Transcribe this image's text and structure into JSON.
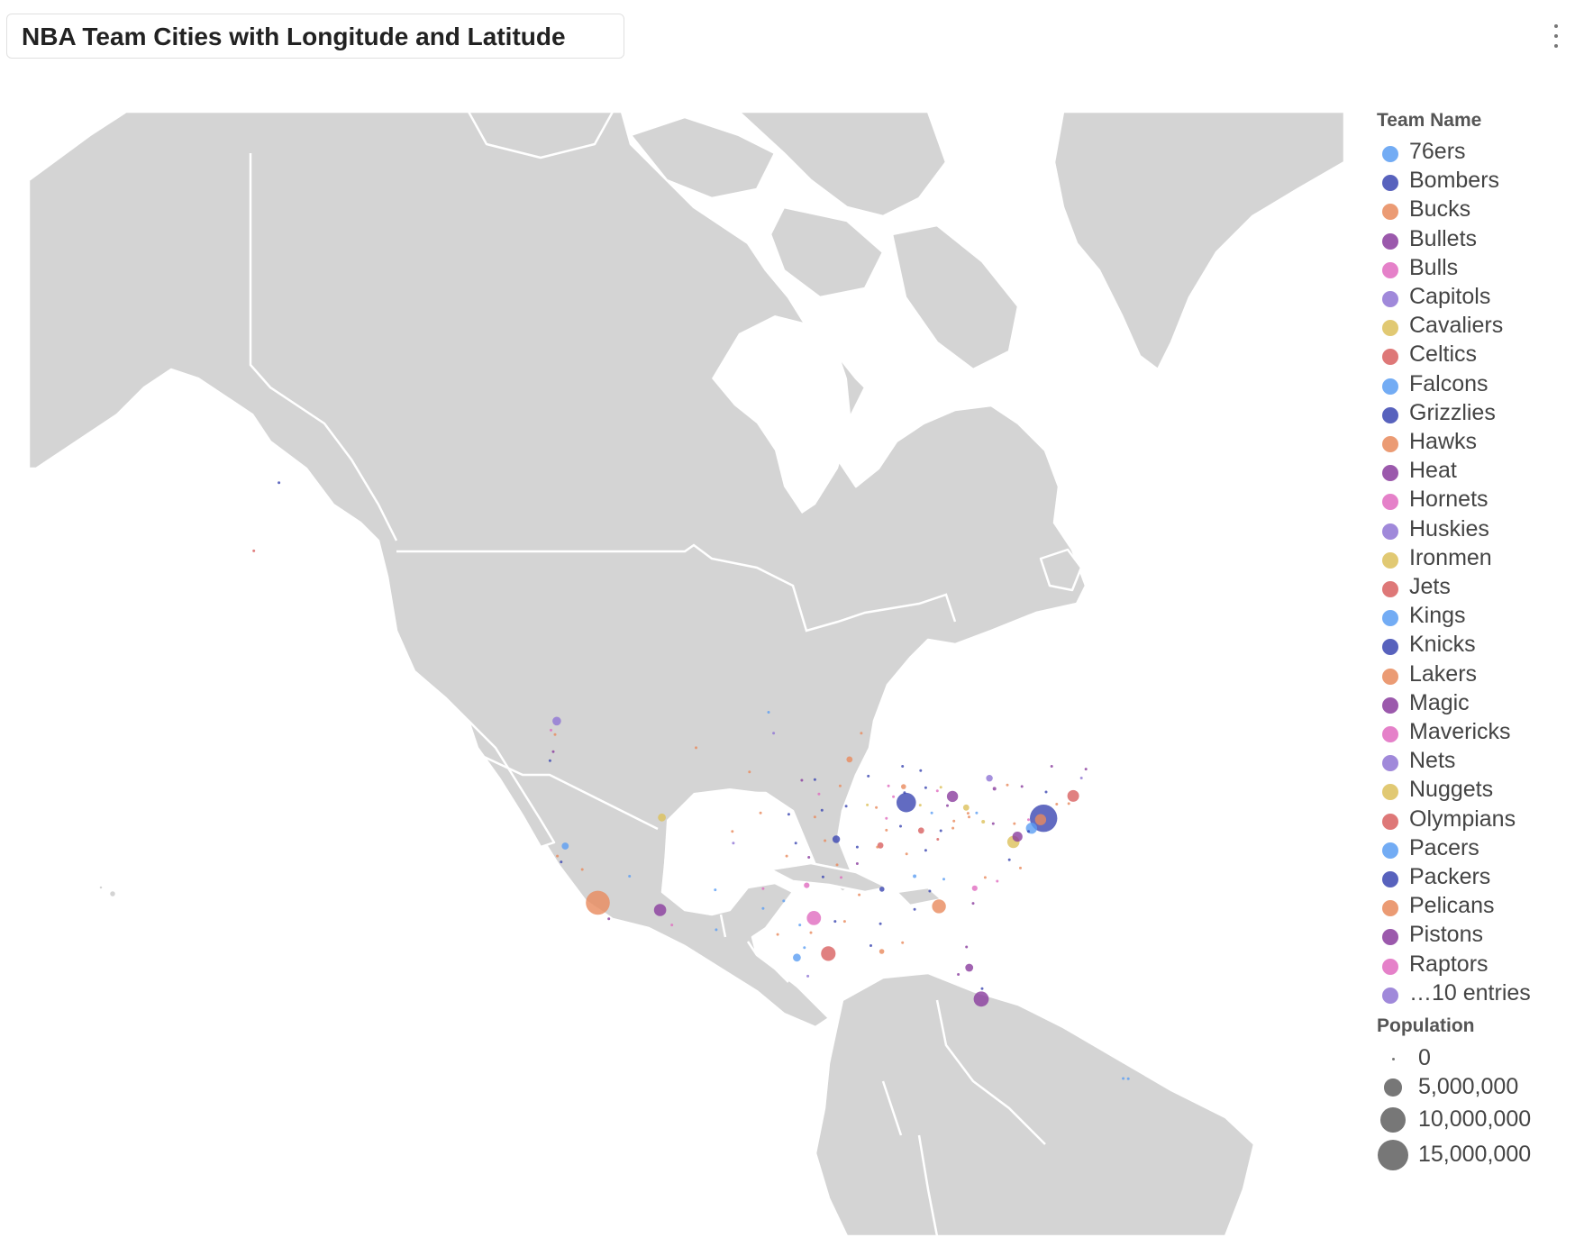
{
  "header": {
    "title": "NBA Team Cities with Longitude and Latitude",
    "menu_icon": "more-vertical-icon"
  },
  "colors": {
    "land": "#d4d4d4",
    "border": "#ffffff",
    "size_legend_dot": "#777777"
  },
  "legend": {
    "color_title": "Team Name",
    "teams": [
      {
        "label": "76ers",
        "color": "#5b9ef2"
      },
      {
        "label": "Bombers",
        "color": "#3b46b2"
      },
      {
        "label": "Bucks",
        "color": "#e88a5c"
      },
      {
        "label": "Bullets",
        "color": "#8a3c9e"
      },
      {
        "label": "Bulls",
        "color": "#e06bbf"
      },
      {
        "label": "Capitols",
        "color": "#8f74d4"
      },
      {
        "label": "Cavaliers",
        "color": "#dcc05a"
      },
      {
        "label": "Celtics",
        "color": "#d86060"
      },
      {
        "label": "Falcons",
        "color": "#5b9ef2"
      },
      {
        "label": "Grizzlies",
        "color": "#3b46b2"
      },
      {
        "label": "Hawks",
        "color": "#e88a5c"
      },
      {
        "label": "Heat",
        "color": "#8a3c9e"
      },
      {
        "label": "Hornets",
        "color": "#e06bbf"
      },
      {
        "label": "Huskies",
        "color": "#8f74d4"
      },
      {
        "label": "Ironmen",
        "color": "#dcc05a"
      },
      {
        "label": "Jets",
        "color": "#d86060"
      },
      {
        "label": "Kings",
        "color": "#5b9ef2"
      },
      {
        "label": "Knicks",
        "color": "#3b46b2"
      },
      {
        "label": "Lakers",
        "color": "#e88a5c"
      },
      {
        "label": "Magic",
        "color": "#8a3c9e"
      },
      {
        "label": "Mavericks",
        "color": "#e06bbf"
      },
      {
        "label": "Nets",
        "color": "#8f74d4"
      },
      {
        "label": "Nuggets",
        "color": "#dcc05a"
      },
      {
        "label": "Olympians",
        "color": "#d86060"
      },
      {
        "label": "Pacers",
        "color": "#5b9ef2"
      },
      {
        "label": "Packers",
        "color": "#3b46b2"
      },
      {
        "label": "Pelicans",
        "color": "#e88a5c"
      },
      {
        "label": "Pistons",
        "color": "#8a3c9e"
      },
      {
        "label": "Raptors",
        "color": "#e06bbf"
      },
      {
        "label": "…10 entries",
        "color": "#8f74d4"
      }
    ],
    "size_title": "Population",
    "sizes": [
      {
        "label": "0",
        "value": 0
      },
      {
        "label": "5,000,000",
        "value": 5000000
      },
      {
        "label": "10,000,000",
        "value": 10000000
      },
      {
        "label": "15,000,000",
        "value": 15000000
      }
    ]
  },
  "chart_data": {
    "type": "scatter",
    "projection": "mercator",
    "x_field": "longitude",
    "y_field": "latitude",
    "color_field": "Team Name",
    "size_field": "Population",
    "points": [
      {
        "lon": -74.0,
        "lat": 40.7,
        "pop": 12000000,
        "c": 1
      },
      {
        "lon": -74.3,
        "lat": 40.6,
        "pop": 2000000,
        "c": 2
      },
      {
        "lon": -75.2,
        "lat": 39.95,
        "pop": 2000000,
        "c": 0
      },
      {
        "lon": -76.6,
        "lat": 39.3,
        "pop": 1600000,
        "c": 3
      },
      {
        "lon": -77.0,
        "lat": 38.9,
        "pop": 2400000,
        "c": 6
      },
      {
        "lon": -71.06,
        "lat": 42.36,
        "pop": 2200000,
        "c": 7
      },
      {
        "lon": -118.25,
        "lat": 34.05,
        "pop": 9200000,
        "c": 2
      },
      {
        "lon": -87.63,
        "lat": 41.88,
        "pop": 6000000,
        "c": 1
      },
      {
        "lon": -83.05,
        "lat": 42.33,
        "pop": 2000000,
        "c": 3
      },
      {
        "lon": -95.37,
        "lat": 29.76,
        "pop": 3400000,
        "c": 7
      },
      {
        "lon": -96.8,
        "lat": 32.78,
        "pop": 3200000,
        "c": 4
      },
      {
        "lon": -84.39,
        "lat": 33.75,
        "pop": 3100000,
        "c": 2
      },
      {
        "lon": -80.19,
        "lat": 25.77,
        "pop": 3700000,
        "c": 3
      },
      {
        "lon": -112.07,
        "lat": 33.45,
        "pop": 2400000,
        "c": 3
      },
      {
        "lon": -122.33,
        "lat": 47.61,
        "pop": 1200000,
        "c": 5
      },
      {
        "lon": -121.49,
        "lat": 38.58,
        "pop": 800000,
        "c": 0
      },
      {
        "lon": -111.89,
        "lat": 40.76,
        "pop": 1000000,
        "c": 6
      },
      {
        "lon": -98.49,
        "lat": 29.42,
        "pop": 1000000,
        "c": 0
      },
      {
        "lon": -90.07,
        "lat": 29.95,
        "pop": 400000,
        "c": 2
      },
      {
        "lon": -81.38,
        "lat": 28.54,
        "pop": 1000000,
        "c": 3
      },
      {
        "lon": -93.27,
        "lat": 44.98,
        "pop": 600000,
        "c": 2
      },
      {
        "lon": -86.16,
        "lat": 39.77,
        "pop": 600000,
        "c": 7
      },
      {
        "lon": -90.05,
        "lat": 35.15,
        "pop": 400000,
        "c": 1
      },
      {
        "lon": -97.52,
        "lat": 35.47,
        "pop": 500000,
        "c": 4
      },
      {
        "lon": -80.84,
        "lat": 35.23,
        "pop": 500000,
        "c": 4
      },
      {
        "lon": -81.69,
        "lat": 41.5,
        "pop": 600000,
        "c": 6
      },
      {
        "lon": -79.38,
        "lat": 43.65,
        "pop": 700000,
        "c": 5
      },
      {
        "lon": -94.58,
        "lat": 39.1,
        "pop": 900000,
        "c": 1
      },
      {
        "lon": -78.88,
        "lat": 42.89,
        "pop": 200000,
        "c": 3
      },
      {
        "lon": -121.89,
        "lat": 37.34,
        "pop": 100000,
        "c": 1
      },
      {
        "lon": -122.68,
        "lat": 45.52,
        "pop": 100000,
        "c": 3
      },
      {
        "lon": -149.9,
        "lat": 61.22,
        "pop": 100000,
        "c": 1
      },
      {
        "lon": -152.4,
        "lat": 57.79,
        "pop": 100000,
        "c": 7
      },
      {
        "lon": -66.1,
        "lat": 18.47,
        "pop": 100000,
        "c": 0
      },
      {
        "lon": -65.6,
        "lat": 18.45,
        "pop": 100000,
        "c": 0
      },
      {
        "lon": -117.16,
        "lat": 32.72,
        "pop": 100000,
        "c": 3
      },
      {
        "lon": -119.8,
        "lat": 36.74,
        "pop": 100000,
        "c": 2
      },
      {
        "lon": -122.27,
        "lat": 37.8,
        "pop": 100000,
        "c": 2
      },
      {
        "lon": -123.0,
        "lat": 44.9,
        "pop": 100000,
        "c": 1
      },
      {
        "lon": -122.9,
        "lat": 47.0,
        "pop": 100000,
        "c": 4
      },
      {
        "lon": -122.5,
        "lat": 46.7,
        "pop": 100000,
        "c": 2
      },
      {
        "lon": -115.1,
        "lat": 36.2,
        "pop": 100000,
        "c": 0
      },
      {
        "lon": -106.6,
        "lat": 35.1,
        "pop": 100000,
        "c": 0
      },
      {
        "lon": -106.5,
        "lat": 31.8,
        "pop": 100000,
        "c": 0
      },
      {
        "lon": -104.9,
        "lat": 39.7,
        "pop": 100000,
        "c": 2
      },
      {
        "lon": -110.9,
        "lat": 32.2,
        "pop": 100000,
        "c": 4
      },
      {
        "lon": -104.8,
        "lat": 38.8,
        "pop": 100000,
        "c": 5
      },
      {
        "lon": -108.5,
        "lat": 45.8,
        "pop": 100000,
        "c": 2
      },
      {
        "lon": -100.8,
        "lat": 46.8,
        "pop": 100000,
        "c": 5
      },
      {
        "lon": -101.3,
        "lat": 48.2,
        "pop": 100000,
        "c": 0
      },
      {
        "lon": -98.0,
        "lat": 43.5,
        "pop": 100000,
        "c": 3
      },
      {
        "lon": -96.7,
        "lat": 40.8,
        "pop": 100000,
        "c": 2
      },
      {
        "lon": -96.0,
        "lat": 41.3,
        "pop": 100000,
        "c": 1
      },
      {
        "lon": -97.3,
        "lat": 37.7,
        "pop": 100000,
        "c": 3
      },
      {
        "lon": -95.7,
        "lat": 39.0,
        "pop": 100000,
        "c": 2
      },
      {
        "lon": -96.3,
        "lat": 42.5,
        "pop": 100000,
        "c": 4
      },
      {
        "lon": -93.6,
        "lat": 41.6,
        "pop": 100000,
        "c": 1
      },
      {
        "lon": -91.5,
        "lat": 41.7,
        "pop": 100000,
        "c": 6
      },
      {
        "lon": -90.6,
        "lat": 41.5,
        "pop": 100000,
        "c": 2
      },
      {
        "lon": -92.1,
        "lat": 46.8,
        "pop": 100000,
        "c": 2
      },
      {
        "lon": -89.4,
        "lat": 43.1,
        "pop": 100000,
        "c": 4
      },
      {
        "lon": -88.0,
        "lat": 44.5,
        "pop": 100000,
        "c": 1
      },
      {
        "lon": -89.6,
        "lat": 39.8,
        "pop": 100000,
        "c": 2
      },
      {
        "lon": -88.2,
        "lat": 40.1,
        "pop": 100000,
        "c": 1
      },
      {
        "lon": -89.6,
        "lat": 40.7,
        "pop": 100000,
        "c": 4
      },
      {
        "lon": -87.6,
        "lat": 37.97,
        "pop": 100000,
        "c": 2
      },
      {
        "lon": -85.1,
        "lat": 41.1,
        "pop": 100000,
        "c": 0
      },
      {
        "lon": -86.25,
        "lat": 41.68,
        "pop": 100000,
        "c": 6
      },
      {
        "lon": -85.7,
        "lat": 38.25,
        "pop": 100000,
        "c": 1
      },
      {
        "lon": -84.5,
        "lat": 39.1,
        "pop": 100000,
        "c": 7
      },
      {
        "lon": -83.0,
        "lat": 39.96,
        "pop": 100000,
        "c": 2
      },
      {
        "lon": -84.2,
        "lat": 39.76,
        "pop": 100000,
        "c": 1
      },
      {
        "lon": -83.55,
        "lat": 41.65,
        "pop": 100000,
        "c": 3
      },
      {
        "lon": -85.7,
        "lat": 42.96,
        "pop": 100000,
        "c": 1
      },
      {
        "lon": -84.55,
        "lat": 42.73,
        "pop": 100000,
        "c": 4
      },
      {
        "lon": -80.0,
        "lat": 40.44,
        "pop": 200000,
        "c": 6
      },
      {
        "lon": -81.5,
        "lat": 41.08,
        "pop": 100000,
        "c": 2
      },
      {
        "lon": -77.6,
        "lat": 43.16,
        "pop": 100000,
        "c": 2
      },
      {
        "lon": -76.15,
        "lat": 43.05,
        "pop": 100000,
        "c": 3
      },
      {
        "lon": -73.75,
        "lat": 42.65,
        "pop": 100000,
        "c": 1
      },
      {
        "lon": -72.7,
        "lat": 41.76,
        "pop": 100000,
        "c": 2
      },
      {
        "lon": -70.25,
        "lat": 43.66,
        "pop": 100000,
        "c": 5
      },
      {
        "lon": -75.5,
        "lat": 39.7,
        "pop": 100000,
        "c": 1
      },
      {
        "lon": -76.3,
        "lat": 36.85,
        "pop": 100000,
        "c": 2
      },
      {
        "lon": -77.4,
        "lat": 37.5,
        "pop": 100000,
        "c": 1
      },
      {
        "lon": -78.6,
        "lat": 35.8,
        "pop": 100000,
        "c": 4
      },
      {
        "lon": -79.8,
        "lat": 36.1,
        "pop": 100000,
        "c": 2
      },
      {
        "lon": -81.0,
        "lat": 34.0,
        "pop": 100000,
        "c": 3
      },
      {
        "lon": -86.8,
        "lat": 33.5,
        "pop": 100000,
        "c": 1
      },
      {
        "lon": -88.0,
        "lat": 30.7,
        "pop": 100000,
        "c": 2
      },
      {
        "lon": -86.8,
        "lat": 36.2,
        "pop": 200000,
        "c": 0
      },
      {
        "lon": -85.3,
        "lat": 35.0,
        "pop": 100000,
        "c": 1
      },
      {
        "lon": -83.9,
        "lat": 35.96,
        "pop": 100000,
        "c": 0
      },
      {
        "lon": -92.3,
        "lat": 34.7,
        "pop": 100000,
        "c": 2
      },
      {
        "lon": -90.2,
        "lat": 32.3,
        "pop": 100000,
        "c": 1
      },
      {
        "lon": -93.75,
        "lat": 32.5,
        "pop": 100000,
        "c": 2
      },
      {
        "lon": -91.15,
        "lat": 30.45,
        "pop": 100000,
        "c": 1
      },
      {
        "lon": -97.74,
        "lat": 30.27,
        "pop": 100000,
        "c": 0
      },
      {
        "lon": -97.1,
        "lat": 31.55,
        "pop": 100000,
        "c": 2
      },
      {
        "lon": -101.85,
        "lat": 33.58,
        "pop": 100000,
        "c": 0
      },
      {
        "lon": -101.85,
        "lat": 35.2,
        "pop": 100000,
        "c": 4
      },
      {
        "lon": -97.4,
        "lat": 27.8,
        "pop": 100000,
        "c": 5
      },
      {
        "lon": -82.46,
        "lat": 27.95,
        "pop": 100000,
        "c": 3
      },
      {
        "lon": -81.65,
        "lat": 30.33,
        "pop": 100000,
        "c": 3
      },
      {
        "lon": -80.1,
        "lat": 26.7,
        "pop": 100000,
        "c": 1
      },
      {
        "lon": -90.2,
        "lat": 38.63,
        "pop": 600000,
        "c": 7
      },
      {
        "lon": -90.5,
        "lat": 38.5,
        "pop": 100000,
        "c": 2
      },
      {
        "lon": -92.5,
        "lat": 38.5,
        "pop": 100000,
        "c": 1
      },
      {
        "lon": -92.5,
        "lat": 37.2,
        "pop": 100000,
        "c": 3
      },
      {
        "lon": -94.5,
        "lat": 37.1,
        "pop": 100000,
        "c": 2
      },
      {
        "lon": -94.1,
        "lat": 36.1,
        "pop": 100000,
        "c": 4
      },
      {
        "lon": -95.9,
        "lat": 36.15,
        "pop": 100000,
        "c": 1
      },
      {
        "lon": -99.5,
        "lat": 37.8,
        "pop": 100000,
        "c": 2
      },
      {
        "lon": -98.6,
        "lat": 38.8,
        "pop": 100000,
        "c": 1
      },
      {
        "lon": -99.3,
        "lat": 41.0,
        "pop": 100000,
        "c": 1
      },
      {
        "lon": -99.8,
        "lat": 34.2,
        "pop": 100000,
        "c": 0
      },
      {
        "lon": -100.4,
        "lat": 31.4,
        "pop": 100000,
        "c": 2
      },
      {
        "lon": -98.2,
        "lat": 32.2,
        "pop": 100000,
        "c": 0
      },
      {
        "lon": -94.7,
        "lat": 32.5,
        "pop": 100000,
        "c": 1
      },
      {
        "lon": -102.1,
        "lat": 41.1,
        "pop": 100000,
        "c": 2
      },
      {
        "lon": -103.2,
        "lat": 44.1,
        "pop": 100000,
        "c": 2
      },
      {
        "lon": -96.7,
        "lat": 43.55,
        "pop": 100000,
        "c": 1
      },
      {
        "lon": -94.2,
        "lat": 43.1,
        "pop": 100000,
        "c": 2
      },
      {
        "lon": -91.4,
        "lat": 43.8,
        "pop": 100000,
        "c": 1
      },
      {
        "lon": -88.9,
        "lat": 42.3,
        "pop": 100000,
        "c": 4
      },
      {
        "lon": -87.9,
        "lat": 43.04,
        "pop": 400000,
        "c": 2
      },
      {
        "lon": -87.8,
        "lat": 42.6,
        "pop": 100000,
        "c": 1
      },
      {
        "lon": -86.2,
        "lat": 44.2,
        "pop": 100000,
        "c": 1
      },
      {
        "lon": -84.2,
        "lat": 43.0,
        "pop": 100000,
        "c": 6
      },
      {
        "lon": -82.9,
        "lat": 40.5,
        "pop": 100000,
        "c": 2
      },
      {
        "lon": -81.4,
        "lat": 40.8,
        "pop": 100000,
        "c": 2
      },
      {
        "lon": -80.65,
        "lat": 41.1,
        "pop": 100000,
        "c": 0
      },
      {
        "lon": -79.0,
        "lat": 40.3,
        "pop": 100000,
        "c": 3
      },
      {
        "lon": -76.9,
        "lat": 40.3,
        "pop": 100000,
        "c": 2
      },
      {
        "lon": -75.5,
        "lat": 40.6,
        "pop": 100000,
        "c": 4
      },
      {
        "lon": -73.2,
        "lat": 44.5,
        "pop": 100000,
        "c": 3
      },
      {
        "lon": -71.5,
        "lat": 41.8,
        "pop": 100000,
        "c": 2
      },
      {
        "lon": -69.8,
        "lat": 44.3,
        "pop": 100000,
        "c": 3
      }
    ]
  }
}
